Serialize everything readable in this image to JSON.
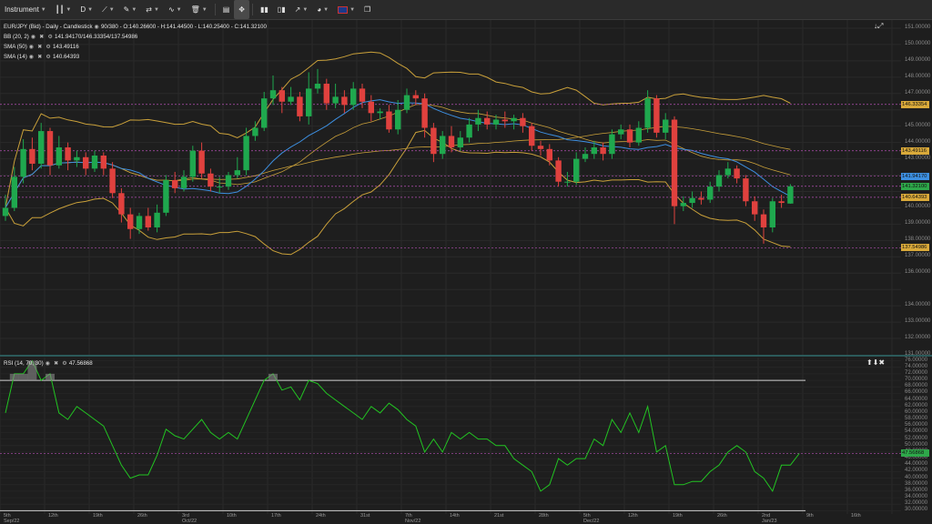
{
  "toolbar": {
    "instrument_label": "Instrument",
    "timeframe_label": "D",
    "flag_icon": "uk-flag-icon"
  },
  "legend": {
    "title": "EUR/JPY (Bid) - Daily - Candlestick",
    "ohlc": "90/380 - O:140.26600 - H:141.44500 - L:140.25400 - C:141.32100",
    "bb_label": "BB (20, 2)",
    "bb_values": "141.94170/146.33354/137.54986",
    "sma50_label": "SMA (50)",
    "sma50_value": "143.49116",
    "sma14_label": "SMA (14)",
    "sma14_value": "140.64393"
  },
  "rsi_legend": {
    "label": "RSI (14, 70, 30)",
    "value": "47.56868"
  },
  "price_axis": [
    "151.00000",
    "150.00000",
    "149.00000",
    "148.00000",
    "147.00000",
    "145.00000",
    "144.00000",
    "143.00000",
    "140.00000",
    "139.00000",
    "138.00000",
    "137.00000",
    "136.00000",
    "134.00000",
    "133.00000",
    "132.00000",
    "131.00000"
  ],
  "price_tags": [
    {
      "text": "146.33354",
      "color": "#d9a93a"
    },
    {
      "text": "143.49116",
      "color": "#d9a93a"
    },
    {
      "text": "141.94170",
      "color": "#3d8fe0"
    },
    {
      "text": "141.32100",
      "color": "#2ea84a"
    },
    {
      "text": "140.64393",
      "color": "#d9a93a"
    },
    {
      "text": "137.54986",
      "color": "#d9a93a"
    }
  ],
  "rsi_axis": [
    "76.00000",
    "74.00000",
    "72.00000",
    "70.00000",
    "68.00000",
    "66.00000",
    "64.00000",
    "62.00000",
    "60.00000",
    "58.00000",
    "56.00000",
    "54.00000",
    "52.00000",
    "50.00000",
    "48.00000",
    "46.00000",
    "44.00000",
    "42.00000",
    "40.00000",
    "38.00000",
    "36.00000",
    "34.00000",
    "32.00000",
    "30.00000"
  ],
  "rsi_tag": {
    "text": "47.56868",
    "color": "#2ea84a"
  },
  "x_axis": [
    {
      "top": "5th",
      "bottom": "Sep/22"
    },
    {
      "top": "12th",
      "bottom": ""
    },
    {
      "top": "19th",
      "bottom": ""
    },
    {
      "top": "26th",
      "bottom": ""
    },
    {
      "top": "3rd",
      "bottom": "Oct/22"
    },
    {
      "top": "10th",
      "bottom": ""
    },
    {
      "top": "17th",
      "bottom": ""
    },
    {
      "top": "24th",
      "bottom": ""
    },
    {
      "top": "31st",
      "bottom": ""
    },
    {
      "top": "7th",
      "bottom": "Nov/22"
    },
    {
      "top": "14th",
      "bottom": ""
    },
    {
      "top": "21st",
      "bottom": ""
    },
    {
      "top": "28th",
      "bottom": ""
    },
    {
      "top": "5th",
      "bottom": "Dec/22"
    },
    {
      "top": "12th",
      "bottom": ""
    },
    {
      "top": "19th",
      "bottom": ""
    },
    {
      "top": "26th",
      "bottom": ""
    },
    {
      "top": "2nd",
      "bottom": "Jan/23"
    },
    {
      "top": "9th",
      "bottom": ""
    },
    {
      "top": "16th",
      "bottom": ""
    }
  ],
  "colors": {
    "bull": "#1fa84e",
    "bear": "#e0413e",
    "bb": "#c9a03a",
    "sma50": "#c9a03a",
    "sma14": "#3d8fe0",
    "rsi": "#22c422"
  },
  "chart_data": [
    {
      "type": "candlestick",
      "title": "EUR/JPY (Bid) - Daily - Candlestick",
      "ylim": [
        131,
        151.5
      ],
      "candles": [
        {
          "o": 139.5,
          "c": 140.0,
          "h": 140.8,
          "l": 139.2
        },
        {
          "o": 140.0,
          "c": 141.9,
          "h": 142.5,
          "l": 139.8
        },
        {
          "o": 141.9,
          "c": 143.6,
          "h": 144.2,
          "l": 141.5
        },
        {
          "o": 143.6,
          "c": 142.7,
          "h": 144.3,
          "l": 142.3
        },
        {
          "o": 142.7,
          "c": 144.7,
          "h": 145.2,
          "l": 142.4
        },
        {
          "o": 144.7,
          "c": 142.6,
          "h": 144.9,
          "l": 142.0
        },
        {
          "o": 142.6,
          "c": 143.7,
          "h": 144.4,
          "l": 142.4
        },
        {
          "o": 143.7,
          "c": 142.9,
          "h": 144.0,
          "l": 142.3
        },
        {
          "o": 142.9,
          "c": 143.1,
          "h": 143.5,
          "l": 142.5
        },
        {
          "o": 143.1,
          "c": 142.4,
          "h": 143.4,
          "l": 142.0
        },
        {
          "o": 142.4,
          "c": 143.2,
          "h": 143.5,
          "l": 142.2
        },
        {
          "o": 143.2,
          "c": 142.4,
          "h": 143.4,
          "l": 142.0
        },
        {
          "o": 142.4,
          "c": 140.9,
          "h": 142.8,
          "l": 140.6
        },
        {
          "o": 140.9,
          "c": 139.6,
          "h": 141.2,
          "l": 139.1
        },
        {
          "o": 139.6,
          "c": 138.7,
          "h": 140.0,
          "l": 138.1
        },
        {
          "o": 138.7,
          "c": 139.5,
          "h": 139.7,
          "l": 138.4
        },
        {
          "o": 139.5,
          "c": 138.8,
          "h": 140.0,
          "l": 138.6
        },
        {
          "o": 138.8,
          "c": 139.7,
          "h": 140.2,
          "l": 138.5
        },
        {
          "o": 139.7,
          "c": 141.7,
          "h": 142.0,
          "l": 139.5
        },
        {
          "o": 141.7,
          "c": 141.2,
          "h": 142.2,
          "l": 140.9
        },
        {
          "o": 141.2,
          "c": 141.9,
          "h": 142.3,
          "l": 141.0
        },
        {
          "o": 141.9,
          "c": 143.5,
          "h": 143.8,
          "l": 141.6
        },
        {
          "o": 143.5,
          "c": 142.1,
          "h": 144.0,
          "l": 141.8
        },
        {
          "o": 142.1,
          "c": 141.3,
          "h": 142.4,
          "l": 141.0
        },
        {
          "o": 141.3,
          "c": 141.3,
          "h": 141.9,
          "l": 140.9
        },
        {
          "o": 141.3,
          "c": 142.0,
          "h": 142.2,
          "l": 141.1
        },
        {
          "o": 142.0,
          "c": 142.3,
          "h": 143.1,
          "l": 141.8
        },
        {
          "o": 142.3,
          "c": 144.4,
          "h": 144.9,
          "l": 142.0
        },
        {
          "o": 144.4,
          "c": 144.9,
          "h": 145.3,
          "l": 144.1
        },
        {
          "o": 144.9,
          "c": 146.7,
          "h": 147.1,
          "l": 144.7
        },
        {
          "o": 146.7,
          "c": 147.2,
          "h": 148.1,
          "l": 146.3
        },
        {
          "o": 147.2,
          "c": 146.5,
          "h": 147.4,
          "l": 145.8
        },
        {
          "o": 146.5,
          "c": 146.8,
          "h": 147.4,
          "l": 146.3
        },
        {
          "o": 146.8,
          "c": 145.6,
          "h": 147.1,
          "l": 145.3
        },
        {
          "o": 145.6,
          "c": 147.3,
          "h": 148.3,
          "l": 145.1
        },
        {
          "o": 147.3,
          "c": 147.6,
          "h": 148.5,
          "l": 147.0
        },
        {
          "o": 147.6,
          "c": 146.4,
          "h": 147.9,
          "l": 146.0
        },
        {
          "o": 146.4,
          "c": 146.8,
          "h": 147.6,
          "l": 146.1
        },
        {
          "o": 146.8,
          "c": 146.3,
          "h": 147.2,
          "l": 145.8
        },
        {
          "o": 146.3,
          "c": 147.3,
          "h": 147.7,
          "l": 146.0
        },
        {
          "o": 147.3,
          "c": 146.5,
          "h": 147.6,
          "l": 146.1
        },
        {
          "o": 146.5,
          "c": 145.8,
          "h": 146.9,
          "l": 145.3
        },
        {
          "o": 145.8,
          "c": 145.9,
          "h": 146.1,
          "l": 145.4
        },
        {
          "o": 145.9,
          "c": 144.8,
          "h": 146.3,
          "l": 144.6
        },
        {
          "o": 144.8,
          "c": 146.0,
          "h": 146.6,
          "l": 144.5
        },
        {
          "o": 146.0,
          "c": 146.9,
          "h": 147.3,
          "l": 145.8
        },
        {
          "o": 146.9,
          "c": 146.7,
          "h": 147.2,
          "l": 146.3
        },
        {
          "o": 146.7,
          "c": 144.9,
          "h": 147.0,
          "l": 144.3
        },
        {
          "o": 144.9,
          "c": 143.3,
          "h": 145.2,
          "l": 142.8
        },
        {
          "o": 143.3,
          "c": 144.4,
          "h": 144.7,
          "l": 143.0
        },
        {
          "o": 144.4,
          "c": 143.7,
          "h": 145.0,
          "l": 143.4
        },
        {
          "o": 143.7,
          "c": 144.3,
          "h": 144.7,
          "l": 143.5
        },
        {
          "o": 144.3,
          "c": 145.1,
          "h": 145.5,
          "l": 144.0
        },
        {
          "o": 145.1,
          "c": 145.5,
          "h": 146.0,
          "l": 144.7
        },
        {
          "o": 145.5,
          "c": 145.1,
          "h": 145.9,
          "l": 144.8
        },
        {
          "o": 145.1,
          "c": 145.4,
          "h": 145.7,
          "l": 144.8
        },
        {
          "o": 145.4,
          "c": 145.3,
          "h": 145.9,
          "l": 144.9
        },
        {
          "o": 145.3,
          "c": 145.5,
          "h": 145.7,
          "l": 144.8
        },
        {
          "o": 145.5,
          "c": 145.0,
          "h": 145.8,
          "l": 144.6
        },
        {
          "o": 145.0,
          "c": 143.8,
          "h": 145.2,
          "l": 143.5
        },
        {
          "o": 143.8,
          "c": 143.6,
          "h": 144.1,
          "l": 143.2
        },
        {
          "o": 143.6,
          "c": 142.9,
          "h": 143.9,
          "l": 142.6
        },
        {
          "o": 142.9,
          "c": 141.6,
          "h": 143.1,
          "l": 141.3
        },
        {
          "o": 141.6,
          "c": 141.6,
          "h": 142.2,
          "l": 141.3
        },
        {
          "o": 141.6,
          "c": 143.0,
          "h": 143.4,
          "l": 141.4
        },
        {
          "o": 143.0,
          "c": 143.3,
          "h": 143.7,
          "l": 142.8
        },
        {
          "o": 143.3,
          "c": 143.7,
          "h": 144.1,
          "l": 143.0
        },
        {
          "o": 143.7,
          "c": 143.3,
          "h": 144.0,
          "l": 142.9
        },
        {
          "o": 143.3,
          "c": 144.5,
          "h": 144.8,
          "l": 143.0
        },
        {
          "o": 144.5,
          "c": 144.8,
          "h": 145.1,
          "l": 144.2
        },
        {
          "o": 144.8,
          "c": 144.0,
          "h": 145.1,
          "l": 143.7
        },
        {
          "o": 144.0,
          "c": 144.9,
          "h": 145.3,
          "l": 143.8
        },
        {
          "o": 144.9,
          "c": 146.7,
          "h": 147.2,
          "l": 144.6
        },
        {
          "o": 146.7,
          "c": 144.6,
          "h": 146.9,
          "l": 144.3
        },
        {
          "o": 144.6,
          "c": 145.4,
          "h": 145.8,
          "l": 144.2
        },
        {
          "o": 145.4,
          "c": 140.1,
          "h": 145.6,
          "l": 139.0
        },
        {
          "o": 140.1,
          "c": 140.3,
          "h": 140.7,
          "l": 139.8
        },
        {
          "o": 140.3,
          "c": 140.6,
          "h": 141.0,
          "l": 140.0
        },
        {
          "o": 140.6,
          "c": 140.5,
          "h": 141.0,
          "l": 140.2
        },
        {
          "o": 140.5,
          "c": 141.3,
          "h": 141.6,
          "l": 140.3
        },
        {
          "o": 141.3,
          "c": 142.0,
          "h": 142.3,
          "l": 141.0
        },
        {
          "o": 142.0,
          "c": 142.4,
          "h": 142.8,
          "l": 141.8
        },
        {
          "o": 142.4,
          "c": 141.8,
          "h": 142.6,
          "l": 141.5
        },
        {
          "o": 141.8,
          "c": 140.4,
          "h": 142.0,
          "l": 140.1
        },
        {
          "o": 140.4,
          "c": 139.6,
          "h": 140.7,
          "l": 139.2
        },
        {
          "o": 139.6,
          "c": 138.8,
          "h": 139.9,
          "l": 137.8
        },
        {
          "o": 138.8,
          "c": 140.4,
          "h": 140.6,
          "l": 138.5
        },
        {
          "o": 140.4,
          "c": 140.3,
          "h": 140.8,
          "l": 140.0
        },
        {
          "o": 140.26,
          "c": 141.32,
          "h": 141.45,
          "l": 140.25
        }
      ]
    },
    {
      "type": "line",
      "title": "RSI (14, 70, 30)",
      "ylim": [
        30,
        76
      ],
      "levels": [
        70,
        30
      ],
      "values": [
        60,
        72,
        72,
        76,
        70,
        72,
        60,
        58,
        62,
        60,
        58,
        56,
        50,
        44,
        40,
        41,
        41,
        47,
        55,
        53,
        52,
        55,
        58,
        54,
        52,
        54,
        52,
        58,
        64,
        70,
        72,
        67,
        68,
        64,
        70,
        69,
        66,
        64,
        62,
        60,
        58,
        62,
        60,
        63,
        61,
        58,
        56,
        48,
        52,
        48,
        54,
        52,
        54,
        52,
        52,
        50,
        50,
        46,
        44,
        42,
        36,
        38,
        46,
        44,
        46,
        46,
        52,
        50,
        58,
        54,
        60,
        54,
        62,
        48,
        50,
        38,
        38,
        39,
        39,
        42,
        44,
        48,
        50,
        48,
        42,
        40,
        36,
        44,
        44,
        47.57
      ]
    }
  ]
}
